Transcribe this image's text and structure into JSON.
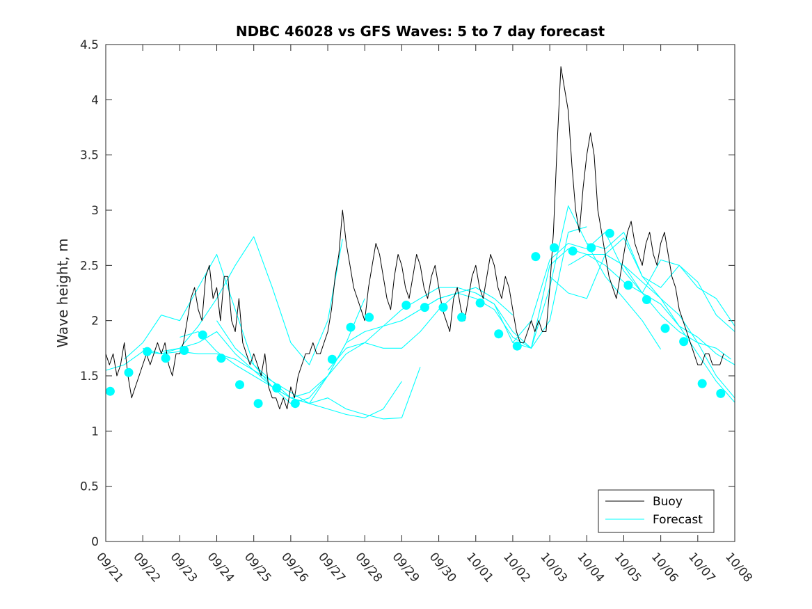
{
  "chart_data": {
    "type": "line",
    "title": "NDBC 46028 vs GFS Waves: 5 to 7 day forecast",
    "xlabel": "",
    "ylabel": "Wave height, m",
    "xlim": [
      0,
      17
    ],
    "ylim": [
      0,
      4.5
    ],
    "x_tick_labels": [
      "09/21",
      "09/22",
      "09/23",
      "09/24",
      "09/25",
      "09/26",
      "09/27",
      "09/28",
      "09/29",
      "09/30",
      "10/01",
      "10/02",
      "10/03",
      "10/04",
      "10/05",
      "10/06",
      "10/07",
      "10/08"
    ],
    "y_ticks": [
      0,
      0.5,
      1,
      1.5,
      2,
      2.5,
      3,
      3.5,
      4,
      4.5
    ],
    "y_tick_labels": [
      "0",
      "0.5",
      "1",
      "1.5",
      "2",
      "2.5",
      "3",
      "3.5",
      "4",
      "4.5"
    ],
    "x_units": "days since 09/21 00:00",
    "legend": {
      "position": "bottom-right",
      "entries": [
        "Buoy",
        "Forecast"
      ]
    },
    "colors": {
      "buoy": "#000000",
      "forecast": "#00ffff",
      "axes": "#262626"
    },
    "series": [
      {
        "name": "Buoy",
        "color": "#000000",
        "x": [
          0.0,
          0.1,
          0.2,
          0.3,
          0.4,
          0.5,
          0.6,
          0.7,
          0.8,
          0.9,
          1.0,
          1.1,
          1.2,
          1.3,
          1.4,
          1.5,
          1.6,
          1.7,
          1.8,
          1.9,
          2.0,
          2.1,
          2.2,
          2.3,
          2.4,
          2.5,
          2.6,
          2.7,
          2.8,
          2.9,
          3.0,
          3.1,
          3.2,
          3.3,
          3.4,
          3.5,
          3.6,
          3.7,
          3.8,
          3.9,
          4.0,
          4.1,
          4.2,
          4.3,
          4.4,
          4.5,
          4.6,
          4.7,
          4.8,
          4.9,
          5.0,
          5.1,
          5.2,
          5.3,
          5.4,
          5.5,
          5.6,
          5.7,
          5.8,
          5.9,
          6.0,
          6.1,
          6.2,
          6.3,
          6.4,
          6.5,
          6.6,
          6.7,
          6.8,
          6.9,
          7.0,
          7.1,
          7.2,
          7.3,
          7.4,
          7.5,
          7.6,
          7.7,
          7.8,
          7.9,
          8.0,
          8.1,
          8.2,
          8.3,
          8.4,
          8.5,
          8.6,
          8.7,
          8.8,
          8.9,
          9.0,
          9.1,
          9.2,
          9.3,
          9.4,
          9.5,
          9.6,
          9.7,
          9.8,
          9.9,
          10.0,
          10.1,
          10.2,
          10.3,
          10.4,
          10.5,
          10.6,
          10.7,
          10.8,
          10.9,
          11.0,
          11.1,
          11.2,
          11.3,
          11.4,
          11.5,
          11.6,
          11.7,
          11.8,
          11.9,
          12.0,
          12.1,
          12.2,
          12.3,
          12.4,
          12.5,
          12.6,
          12.7,
          12.8,
          12.9,
          13.0,
          13.1,
          13.2,
          13.3,
          13.4,
          13.5,
          13.6,
          13.7,
          13.8,
          13.9,
          14.0,
          14.1,
          14.2,
          14.3,
          14.4,
          14.5,
          14.6,
          14.7,
          14.8,
          14.9,
          15.0,
          15.1,
          15.2,
          15.3,
          15.4,
          15.5,
          15.6,
          15.7,
          15.8,
          15.9,
          16.0,
          16.1,
          16.2,
          16.3,
          16.4,
          16.5,
          16.6,
          16.7
        ],
        "y": [
          1.7,
          1.6,
          1.7,
          1.5,
          1.6,
          1.8,
          1.5,
          1.3,
          1.4,
          1.5,
          1.6,
          1.7,
          1.6,
          1.7,
          1.8,
          1.7,
          1.8,
          1.6,
          1.5,
          1.7,
          1.7,
          1.8,
          2.0,
          2.2,
          2.3,
          2.1,
          2.0,
          2.4,
          2.5,
          2.2,
          2.3,
          2.0,
          2.4,
          2.4,
          2.0,
          1.9,
          2.2,
          1.8,
          1.7,
          1.6,
          1.7,
          1.6,
          1.5,
          1.7,
          1.4,
          1.3,
          1.3,
          1.2,
          1.3,
          1.2,
          1.4,
          1.3,
          1.5,
          1.6,
          1.7,
          1.7,
          1.8,
          1.7,
          1.7,
          1.8,
          1.9,
          2.1,
          2.4,
          2.6,
          3.0,
          2.7,
          2.5,
          2.3,
          2.2,
          2.1,
          2.0,
          2.3,
          2.5,
          2.7,
          2.6,
          2.4,
          2.2,
          2.1,
          2.4,
          2.6,
          2.5,
          2.3,
          2.2,
          2.4,
          2.6,
          2.5,
          2.3,
          2.2,
          2.4,
          2.5,
          2.3,
          2.1,
          2.0,
          1.9,
          2.2,
          2.3,
          2.1,
          2.0,
          2.2,
          2.4,
          2.5,
          2.3,
          2.2,
          2.4,
          2.6,
          2.5,
          2.3,
          2.2,
          2.4,
          2.3,
          2.1,
          1.9,
          1.8,
          1.8,
          1.9,
          2.0,
          1.9,
          2.0,
          1.9,
          1.9,
          2.3,
          2.8,
          3.6,
          4.3,
          4.1,
          3.9,
          3.4,
          3.0,
          2.8,
          3.2,
          3.5,
          3.7,
          3.5,
          3.0,
          2.8,
          2.6,
          2.4,
          2.3,
          2.2,
          2.4,
          2.6,
          2.8,
          2.9,
          2.7,
          2.6,
          2.5,
          2.7,
          2.8,
          2.6,
          2.5,
          2.7,
          2.8,
          2.6,
          2.4,
          2.3,
          2.1,
          2.0,
          1.9,
          1.8,
          1.7,
          1.6,
          1.6,
          1.7,
          1.7,
          1.6,
          1.6,
          1.6,
          1.7
        ]
      },
      {
        "name": "Forecast",
        "color": "#00ffff",
        "runs": [
          {
            "x": [
              0.0,
              0.5,
              1.0,
              1.5,
              2.0,
              2.5,
              3.0,
              3.5,
              4.0,
              4.5,
              5.0,
              5.5,
              6.0,
              6.4
            ],
            "y": [
              1.55,
              1.6,
              1.72,
              1.7,
              1.75,
              1.95,
              2.2,
              2.5,
              2.76,
              2.3,
              1.8,
              1.6,
              2.0,
              2.74
            ]
          },
          {
            "x": [
              0.5,
              1.0,
              1.5,
              2.0,
              2.5,
              3.0,
              3.5,
              4.0,
              4.5,
              5.0,
              5.5,
              6.0,
              6.5,
              7.0
            ],
            "y": [
              1.65,
              1.8,
              2.05,
              2.0,
              2.3,
              2.6,
              2.1,
              1.6,
              1.4,
              1.25,
              1.3,
              1.5,
              1.8,
              2.2
            ]
          },
          {
            "x": [
              1.0,
              1.5,
              2.0,
              2.5,
              3.0,
              3.5,
              4.0,
              4.5,
              5.0,
              5.5,
              6.0,
              6.5,
              7.0,
              7.5,
              8.0
            ],
            "y": [
              1.75,
              1.7,
              1.72,
              1.7,
              1.7,
              1.65,
              1.55,
              1.45,
              1.35,
              1.25,
              1.2,
              1.15,
              1.12,
              1.2,
              1.45
            ]
          },
          {
            "x": [
              1.5,
              2.0,
              2.5,
              3.0,
              3.5,
              4.0,
              4.5,
              5.0,
              5.5,
              6.0,
              6.5,
              7.0,
              7.5,
              8.0,
              8.5
            ],
            "y": [
              1.72,
              1.75,
              1.8,
              1.9,
              1.7,
              1.55,
              1.4,
              1.3,
              1.25,
              1.3,
              1.2,
              1.15,
              1.11,
              1.12,
              1.58
            ]
          },
          {
            "x": [
              2.0,
              2.5,
              3.0,
              3.5,
              4.0,
              4.5,
              5.0,
              5.5,
              6.0,
              6.5,
              7.0,
              7.5,
              8.0,
              8.5,
              9.0,
              9.5,
              10.0
            ],
            "y": [
              1.85,
              1.9,
              1.72,
              1.6,
              1.5,
              1.4,
              1.3,
              1.35,
              1.5,
              1.7,
              1.8,
              1.75,
              1.75,
              1.9,
              2.1,
              2.25,
              2.3
            ]
          },
          {
            "x": [
              3.0,
              3.5,
              4.0,
              4.5,
              5.0,
              5.5,
              6.0,
              6.5,
              7.0,
              7.5,
              8.0,
              8.5,
              9.0,
              9.5,
              10.0,
              10.5,
              11.0
            ],
            "y": [
              2.0,
              1.75,
              1.6,
              1.45,
              1.3,
              1.25,
              1.5,
              1.8,
              1.9,
              1.95,
              2.0,
              2.1,
              2.2,
              2.25,
              2.3,
              2.2,
              2.05
            ]
          },
          {
            "x": [
              6.0,
              6.5,
              7.0,
              7.5,
              8.0,
              8.5,
              9.0,
              9.5,
              10.0,
              10.5,
              11.0,
              11.5,
              12.0,
              12.5,
              13.0
            ],
            "y": [
              1.55,
              1.75,
              1.8,
              1.95,
              2.1,
              2.2,
              2.3,
              2.3,
              2.25,
              2.15,
              1.9,
              1.75,
              2.0,
              2.8,
              2.85
            ]
          },
          {
            "x": [
              8.0,
              8.5,
              9.0,
              9.5,
              10.0,
              10.5,
              11.0,
              11.5,
              12.0,
              12.5,
              13.0,
              13.5,
              14.0,
              14.5,
              15.0
            ],
            "y": [
              2.0,
              2.1,
              2.2,
              2.25,
              2.2,
              2.1,
              1.85,
              1.75,
              2.3,
              3.04,
              2.7,
              2.4,
              2.2,
              2.0,
              1.74
            ]
          },
          {
            "x": [
              10.0,
              10.5,
              11.0,
              11.5,
              12.0,
              12.5,
              13.0,
              13.5,
              14.0,
              14.5,
              15.0,
              15.5,
              16.0,
              16.5,
              17.0
            ],
            "y": [
              2.25,
              2.15,
              1.8,
              1.75,
              2.5,
              2.65,
              2.6,
              2.6,
              2.75,
              2.4,
              2.3,
              2.5,
              2.35,
              2.05,
              1.9
            ]
          },
          {
            "x": [
              11.0,
              11.5,
              12.0,
              12.5,
              13.0,
              13.5,
              14.0,
              14.5,
              15.0,
              15.5,
              16.0,
              16.5,
              16.9
            ],
            "y": [
              1.8,
              2.0,
              2.55,
              2.7,
              2.65,
              2.8,
              2.45,
              2.25,
              2.05,
              1.9,
              1.8,
              1.75,
              1.65
            ]
          },
          {
            "x": [
              12.0,
              12.5,
              13.0,
              13.5,
              14.0,
              14.5,
              15.0,
              15.5,
              16.0,
              16.5,
              17.0
            ],
            "y": [
              2.4,
              2.25,
              2.2,
              2.6,
              2.5,
              2.25,
              2.15,
              1.95,
              1.85,
              1.7,
              1.6
            ]
          },
          {
            "x": [
              12.5,
              13.0,
              13.5,
              14.0,
              14.5,
              15.0,
              15.5,
              16.0,
              16.5,
              17.0
            ],
            "y": [
              2.5,
              2.6,
              2.5,
              2.35,
              2.25,
              2.55,
              2.5,
              2.3,
              2.2,
              1.95
            ]
          },
          {
            "x": [
              13.0,
              13.5,
              14.0,
              14.5,
              15.0,
              15.5,
              16.0,
              16.5,
              17.0
            ],
            "y": [
              2.7,
              2.65,
              2.8,
              2.4,
              2.2,
              1.95,
              1.7,
              1.45,
              1.26
            ]
          },
          {
            "x": [
              14.0,
              14.5,
              15.0,
              15.5,
              16.0,
              16.5,
              17.0
            ],
            "y": [
              2.5,
              2.35,
              2.2,
              2.05,
              1.8,
              1.5,
              1.3
            ]
          }
        ],
        "markers": {
          "x": [
            0.12,
            0.62,
            1.12,
            1.62,
            2.12,
            2.62,
            3.12,
            3.62,
            4.12,
            4.62,
            5.12,
            6.12,
            6.62,
            7.12,
            8.12,
            8.62,
            9.12,
            9.62,
            10.12,
            10.62,
            11.12,
            11.62,
            12.12,
            12.62,
            13.12,
            13.62,
            14.12,
            14.62,
            15.12,
            15.62,
            16.12,
            16.62
          ],
          "y": [
            1.36,
            1.53,
            1.72,
            1.66,
            1.73,
            1.87,
            1.66,
            1.42,
            1.25,
            1.39,
            1.25,
            1.65,
            1.94,
            2.03,
            2.14,
            2.12,
            2.12,
            2.03,
            2.16,
            1.88,
            1.77,
            2.58,
            2.66,
            2.63,
            2.66,
            2.79,
            2.32,
            2.19,
            1.93,
            1.81,
            1.43,
            1.34
          ]
        }
      }
    ]
  }
}
